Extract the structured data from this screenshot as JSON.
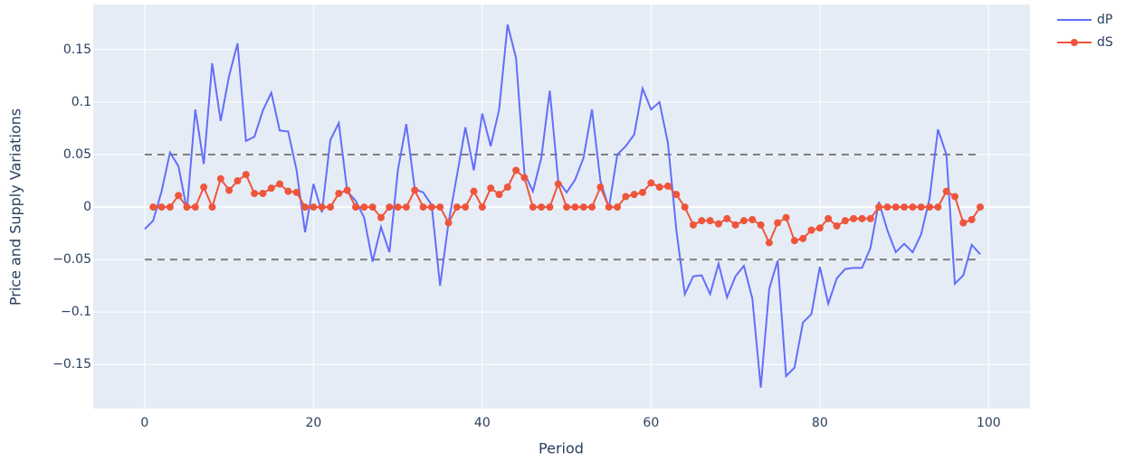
{
  "chart_data": {
    "type": "line",
    "xlabel": "Period",
    "ylabel": "Price and Supply Variations",
    "xlim": [
      -6.1,
      104.9
    ],
    "ylim": [
      -0.192,
      0.193
    ],
    "xticks": [
      0,
      20,
      40,
      60,
      80,
      100
    ],
    "yticks": [
      {
        "value": -0.15,
        "label": "−0.15"
      },
      {
        "value": -0.1,
        "label": "−0.1"
      },
      {
        "value": -0.05,
        "label": "−0.05"
      },
      0,
      0.05,
      0.1,
      0.15
    ],
    "grid": true,
    "legend": "top-right",
    "reference_lines": {
      "values": [
        0.05,
        -0.05
      ],
      "color": "#808080"
    },
    "series": [
      {
        "name": "dP",
        "color": "#636efa",
        "markers": false,
        "x": [
          0,
          1,
          2,
          3,
          4,
          5,
          6,
          7,
          8,
          9,
          10,
          11,
          12,
          13,
          14,
          15,
          16,
          17,
          18,
          19,
          20,
          21,
          22,
          23,
          24,
          25,
          26,
          27,
          28,
          29,
          30,
          31,
          32,
          33,
          34,
          35,
          36,
          37,
          38,
          39,
          40,
          41,
          42,
          43,
          44,
          45,
          46,
          47,
          48,
          49,
          50,
          51,
          52,
          53,
          54,
          55,
          56,
          57,
          58,
          59,
          60,
          61,
          62,
          63,
          64,
          65,
          66,
          67,
          68,
          69,
          70,
          71,
          72,
          73,
          74,
          75,
          76,
          77,
          78,
          79,
          80,
          81,
          82,
          83,
          84,
          85,
          86,
          87,
          88,
          89,
          90,
          91,
          92,
          93,
          94,
          95,
          96,
          97,
          98,
          99
        ],
        "values": [
          -0.021,
          -0.013,
          0.015,
          0.052,
          0.039,
          -0.003,
          0.093,
          0.041,
          0.137,
          0.082,
          0.125,
          0.156,
          0.063,
          0.067,
          0.092,
          0.109,
          0.073,
          0.072,
          0.035,
          -0.024,
          0.022,
          -0.005,
          0.064,
          0.08,
          0.015,
          0.006,
          -0.01,
          -0.052,
          -0.019,
          -0.043,
          0.035,
          0.079,
          0.017,
          0.014,
          0.002,
          -0.075,
          -0.015,
          0.03,
          0.076,
          0.035,
          0.089,
          0.058,
          0.093,
          0.174,
          0.142,
          0.032,
          0.015,
          0.047,
          0.111,
          0.025,
          0.014,
          0.026,
          0.047,
          0.093,
          0.025,
          -0.001,
          0.05,
          0.058,
          0.069,
          0.113,
          0.093,
          0.1,
          0.061,
          -0.022,
          -0.083,
          -0.066,
          -0.065,
          -0.083,
          -0.054,
          -0.086,
          -0.066,
          -0.056,
          -0.087,
          -0.172,
          -0.078,
          -0.051,
          -0.161,
          -0.153,
          -0.11,
          -0.102,
          -0.057,
          -0.092,
          -0.068,
          -0.059,
          -0.058,
          -0.058,
          -0.039,
          0.005,
          -0.022,
          -0.043,
          -0.035,
          -0.043,
          -0.026,
          0.008,
          0.074,
          0.05,
          -0.073,
          -0.065,
          -0.036,
          -0.045
        ]
      },
      {
        "name": "dS",
        "color": "#ef553b",
        "markers": true,
        "x": [
          1,
          2,
          3,
          4,
          5,
          6,
          7,
          8,
          9,
          10,
          11,
          12,
          13,
          14,
          15,
          16,
          17,
          18,
          19,
          20,
          21,
          22,
          23,
          24,
          25,
          26,
          27,
          28,
          29,
          30,
          31,
          32,
          33,
          34,
          35,
          36,
          37,
          38,
          39,
          40,
          41,
          42,
          43,
          44,
          45,
          46,
          47,
          48,
          49,
          50,
          51,
          52,
          53,
          54,
          55,
          56,
          57,
          58,
          59,
          60,
          61,
          62,
          63,
          64,
          65,
          66,
          67,
          68,
          69,
          70,
          71,
          72,
          73,
          74,
          75,
          76,
          77,
          78,
          79,
          80,
          81,
          82,
          83,
          84,
          85,
          86,
          87,
          88,
          89,
          90,
          91,
          92,
          93,
          94,
          95,
          96,
          97,
          98,
          99
        ],
        "values": [
          0,
          0,
          0,
          0.011,
          0,
          0,
          0.019,
          0,
          0.027,
          0.016,
          0.025,
          0.031,
          0.013,
          0.013,
          0.018,
          0.022,
          0.015,
          0.014,
          0,
          0,
          0,
          0,
          0.013,
          0.016,
          0,
          0,
          0,
          -0.01,
          0,
          0,
          0,
          0.016,
          0,
          0,
          0,
          -0.015,
          0,
          0,
          0.015,
          0,
          0.018,
          0.012,
          0.019,
          0.035,
          0.028,
          0,
          0,
          0,
          0.022,
          0,
          0,
          0,
          0,
          0.019,
          0,
          0,
          0.01,
          0.012,
          0.014,
          0.023,
          0.019,
          0.02,
          0.012,
          0,
          -0.017,
          -0.013,
          -0.013,
          -0.016,
          -0.011,
          -0.017,
          -0.013,
          -0.012,
          -0.017,
          -0.034,
          -0.015,
          -0.01,
          -0.032,
          -0.03,
          -0.022,
          -0.02,
          -0.011,
          -0.018,
          -0.013,
          -0.011,
          -0.011,
          -0.011,
          0,
          0,
          0,
          0,
          0,
          0,
          0,
          0,
          0.015,
          0.01,
          -0.015,
          -0.012,
          0
        ]
      }
    ]
  }
}
